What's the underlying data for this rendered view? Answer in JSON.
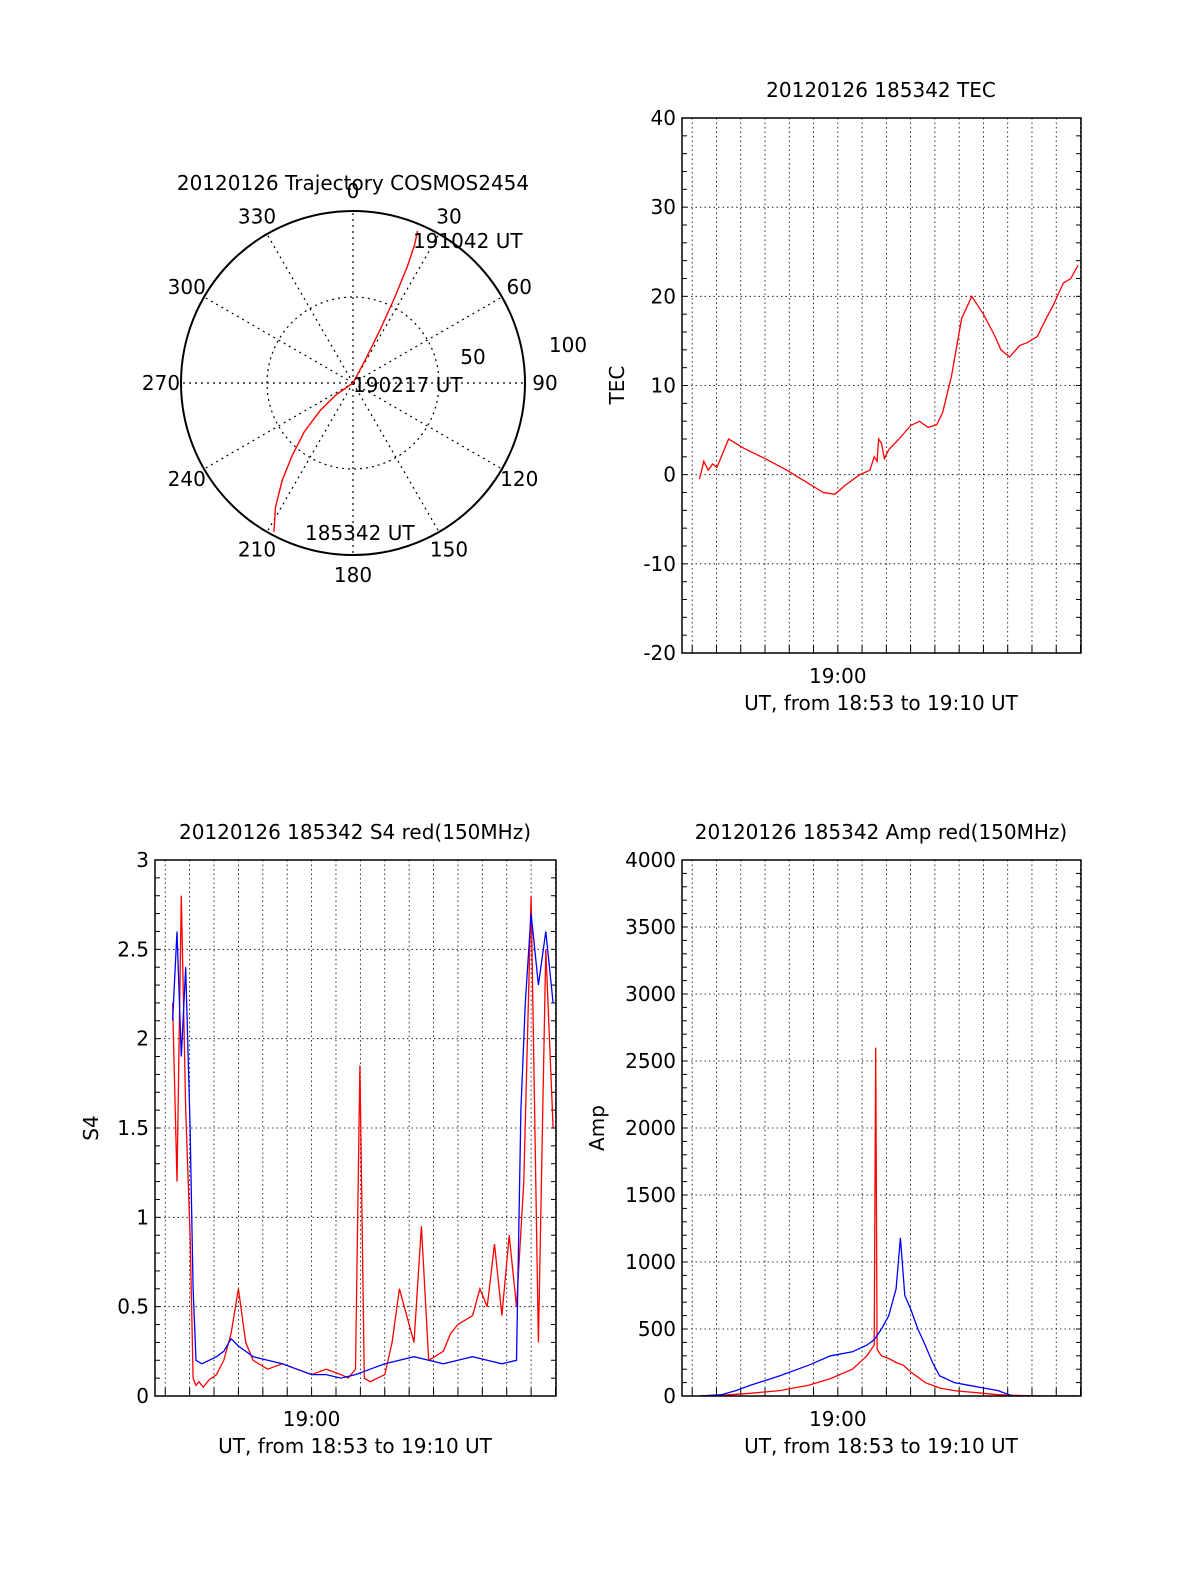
{
  "chart_data": [
    {
      "id": "trajectory",
      "type": "polar",
      "title": "20120126 Trajectory COSMOS2454",
      "azimuth_labels": [
        "0",
        "30",
        "60",
        "90",
        "120",
        "150",
        "180",
        "210",
        "240",
        "270",
        "300",
        "330"
      ],
      "radial_labels": [
        "50",
        "100"
      ],
      "rlim": [
        0,
        100
      ],
      "series": [
        {
          "color": "#ff0000",
          "points_az_r": [
            [
              208,
              98
            ],
            [
              212,
              85
            ],
            [
              216,
              70
            ],
            [
              220,
              55
            ],
            [
              225,
              40
            ],
            [
              230,
              25
            ],
            [
              235,
              12
            ],
            [
              90,
              0
            ],
            [
              28,
              15
            ],
            [
              27,
              35
            ],
            [
              26,
              55
            ],
            [
              25,
              75
            ],
            [
              24,
              88
            ],
            [
              23,
              96
            ]
          ]
        }
      ],
      "annotations": [
        {
          "text": "191042 UT",
          "az": 24,
          "r": 95
        },
        {
          "text": "190217 UT",
          "az": 90,
          "r": 0
        },
        {
          "text": "185342 UT",
          "az": 205,
          "r": 94
        }
      ]
    },
    {
      "id": "tec",
      "type": "line",
      "title": "20120126 185342 TEC",
      "xlabel": "UT, from 18:53 to 19:10 UT",
      "ylabel": "TEC",
      "x_tick_labels": [
        {
          "x": 19.0,
          "label": "19:00"
        }
      ],
      "xlim": [
        18.893,
        19.167
      ],
      "ylim": [
        -20,
        40
      ],
      "y_ticks": [
        -20,
        -10,
        0,
        10,
        20,
        30,
        40
      ],
      "grid": true,
      "series": [
        {
          "color": "#ff0000",
          "x": [
            18.905,
            18.908,
            18.911,
            18.914,
            18.917,
            18.92,
            18.925,
            18.935,
            18.95,
            18.965,
            18.98,
            18.99,
            18.998,
            19.005,
            19.015,
            19.022,
            19.025,
            19.027,
            19.028,
            19.03,
            19.032,
            19.035,
            19.042,
            19.05,
            19.056,
            19.062,
            19.068,
            19.072,
            19.078,
            19.085,
            19.092,
            19.1,
            19.108,
            19.112,
            19.118,
            19.125,
            19.13,
            19.137,
            19.143,
            19.148,
            19.152,
            19.155,
            19.16,
            19.165
          ],
          "y": [
            -0.5,
            1.5,
            0.5,
            1.2,
            0.8,
            2.0,
            4.0,
            3.0,
            1.8,
            0.5,
            -1.0,
            -2.0,
            -2.2,
            -1.2,
            0.0,
            0.5,
            2.0,
            1.5,
            4.0,
            3.5,
            1.8,
            2.8,
            4.0,
            5.5,
            6.0,
            5.3,
            5.6,
            7.0,
            11.0,
            17.5,
            20.0,
            18.0,
            15.5,
            14.0,
            13.2,
            14.5,
            14.8,
            15.5,
            17.5,
            19.0,
            20.5,
            21.5,
            22.0,
            23.5
          ]
        }
      ]
    },
    {
      "id": "s4",
      "type": "line",
      "title": "20120126 185342 S4 red(150MHz)",
      "xlabel": "UT, from 18:53 to 19:10 UT",
      "ylabel": "S4",
      "x_tick_labels": [
        {
          "x": 19.0,
          "label": "19:00"
        }
      ],
      "xlim": [
        18.893,
        19.167
      ],
      "ylim": [
        0,
        3
      ],
      "y_ticks": [
        0,
        0.5,
        1,
        1.5,
        2,
        2.5,
        3
      ],
      "y_tick_labels": [
        "0",
        "0.5",
        "1",
        "1.5",
        "2",
        "2.5",
        "3"
      ],
      "grid": true,
      "series": [
        {
          "color": "#ff0000",
          "x": [
            18.905,
            18.908,
            18.911,
            18.914,
            18.917,
            18.919,
            18.921,
            18.923,
            18.926,
            18.93,
            18.935,
            18.94,
            18.945,
            18.95,
            18.955,
            18.96,
            18.97,
            18.98,
            18.99,
            19.0,
            19.01,
            19.02,
            19.025,
            19.03,
            19.033,
            19.036,
            19.04,
            19.05,
            19.055,
            19.06,
            19.07,
            19.075,
            19.08,
            19.09,
            19.095,
            19.1,
            19.11,
            19.115,
            19.12,
            19.125,
            19.13,
            19.135,
            19.14,
            19.145,
            19.15,
            19.155,
            19.16,
            19.165
          ],
          "y": [
            2.2,
            1.2,
            2.8,
            1.6,
            0.9,
            0.1,
            0.06,
            0.08,
            0.05,
            0.09,
            0.12,
            0.2,
            0.35,
            0.6,
            0.3,
            0.2,
            0.15,
            0.18,
            0.15,
            0.12,
            0.15,
            0.12,
            0.1,
            0.15,
            1.85,
            0.1,
            0.08,
            0.12,
            0.3,
            0.6,
            0.3,
            0.95,
            0.2,
            0.25,
            0.35,
            0.4,
            0.45,
            0.6,
            0.5,
            0.85,
            0.45,
            0.9,
            0.5,
            1.2,
            2.8,
            0.3,
            2.5,
            1.5
          ]
        },
        {
          "color": "#0000ff",
          "x": [
            18.905,
            18.908,
            18.911,
            18.914,
            18.917,
            18.919,
            18.921,
            18.925,
            18.93,
            18.935,
            18.94,
            18.945,
            18.95,
            18.96,
            18.97,
            18.98,
            18.99,
            19.0,
            19.01,
            19.02,
            19.03,
            19.04,
            19.05,
            19.06,
            19.07,
            19.08,
            19.09,
            19.1,
            19.11,
            19.12,
            19.13,
            19.14,
            19.143,
            19.146,
            19.15,
            19.155,
            19.16,
            19.165
          ],
          "y": [
            2.1,
            2.6,
            1.9,
            2.4,
            1.5,
            0.6,
            0.2,
            0.18,
            0.2,
            0.22,
            0.25,
            0.32,
            0.28,
            0.22,
            0.2,
            0.18,
            0.15,
            0.12,
            0.12,
            0.1,
            0.12,
            0.15,
            0.18,
            0.2,
            0.22,
            0.2,
            0.18,
            0.2,
            0.22,
            0.2,
            0.18,
            0.2,
            1.6,
            2.2,
            2.7,
            2.3,
            2.6,
            2.2
          ]
        }
      ]
    },
    {
      "id": "amp",
      "type": "line",
      "title": "20120126 185342 Amp red(150MHz)",
      "xlabel": "UT, from 18:53 to 19:10 UT",
      "ylabel": "Amp",
      "x_tick_labels": [
        {
          "x": 19.0,
          "label": "19:00"
        }
      ],
      "xlim": [
        18.893,
        19.167
      ],
      "ylim": [
        0,
        4000
      ],
      "y_ticks": [
        0,
        500,
        1000,
        1500,
        2000,
        2500,
        3000,
        3500,
        4000
      ],
      "grid": true,
      "series": [
        {
          "color": "#ff0000",
          "x": [
            18.905,
            18.92,
            18.94,
            18.96,
            18.98,
            18.995,
            19.01,
            19.02,
            19.025,
            19.026,
            19.027,
            19.028,
            19.03,
            19.035,
            19.04,
            19.045,
            19.05,
            19.055,
            19.06,
            19.07,
            19.08,
            19.09,
            19.1,
            19.11,
            19.12,
            19.14,
            19.165
          ],
          "y": [
            0,
            5,
            20,
            40,
            80,
            130,
            200,
            300,
            380,
            2600,
            350,
            330,
            300,
            280,
            250,
            230,
            180,
            140,
            100,
            60,
            40,
            30,
            20,
            10,
            5,
            0,
            0
          ]
        },
        {
          "color": "#0000ff",
          "x": [
            18.905,
            18.92,
            18.93,
            18.94,
            18.96,
            18.98,
            18.995,
            19.01,
            19.02,
            19.025,
            19.03,
            19.035,
            19.04,
            19.043,
            19.046,
            19.05,
            19.055,
            19.06,
            19.065,
            19.07,
            19.08,
            19.09,
            19.1,
            19.11,
            19.115,
            19.12,
            19.14,
            19.165
          ],
          "y": [
            0,
            10,
            40,
            80,
            150,
            230,
            300,
            330,
            380,
            420,
            500,
            600,
            800,
            1180,
            750,
            650,
            500,
            380,
            250,
            150,
            100,
            80,
            60,
            40,
            20,
            0,
            0,
            0
          ]
        }
      ]
    }
  ]
}
